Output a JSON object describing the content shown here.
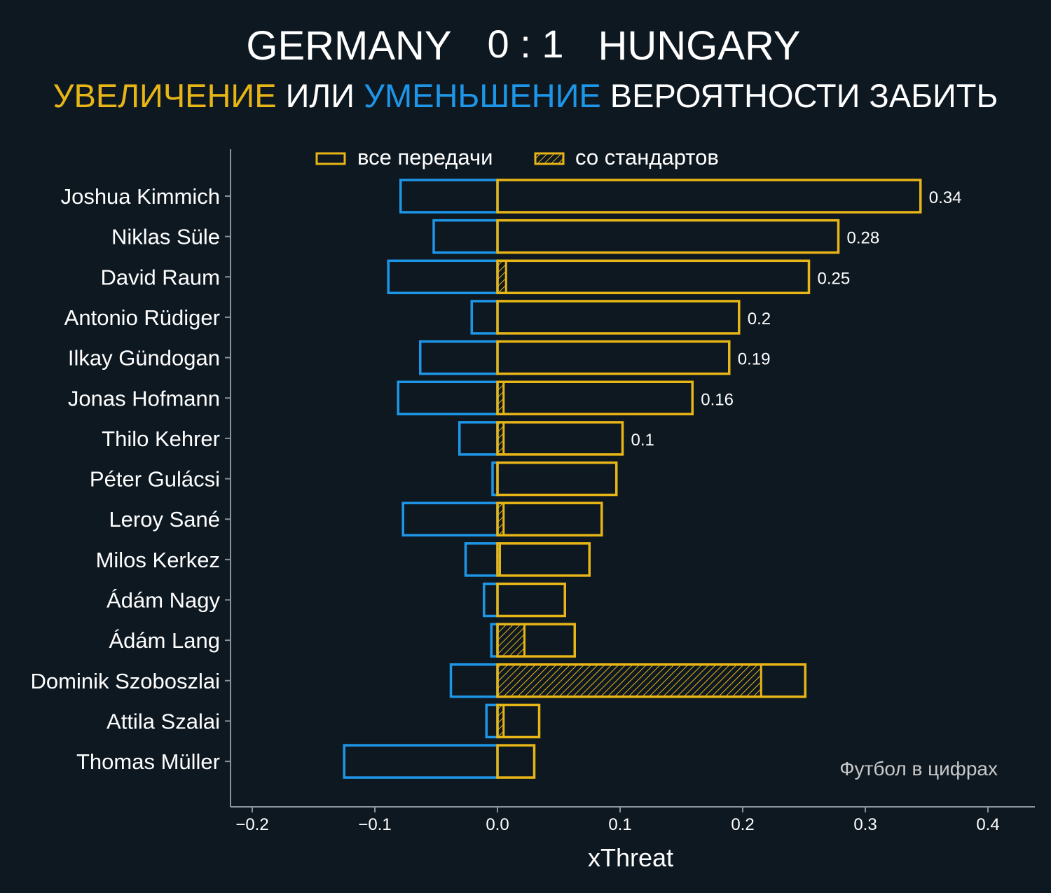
{
  "colors": {
    "background": "#0e1821",
    "increase": "#e8b517",
    "decrease": "#1e96e8",
    "text": "#ffffff",
    "axis": "#8a949c",
    "watermark": "#c8c8c8"
  },
  "header": {
    "home": "GERMANY",
    "score": "0 : 1",
    "away": "HUNGARY",
    "subtitle_increase": "УВЕЛИЧЕНИЕ",
    "subtitle_or": " ИЛИ ",
    "subtitle_decrease": "УМЕНЬШЕНИЕ",
    "subtitle_rest": " ВЕРОЯТНОСТИ ЗАБИТЬ"
  },
  "watermark": "Футбол в цифрах",
  "chart_data": {
    "type": "bar",
    "orientation": "horizontal",
    "xlabel": "xThreat",
    "xlim": [
      -0.22,
      0.44
    ],
    "xticks": [
      -0.2,
      -0.1,
      0.0,
      0.1,
      0.2,
      0.3,
      0.4
    ],
    "xtick_labels": [
      "−0.2",
      "−0.1",
      "0.0",
      "0.1",
      "0.2",
      "0.3",
      "0.4"
    ],
    "legend": {
      "placement": "top",
      "entries": [
        "все передачи",
        "со стандартов"
      ]
    },
    "categories": [
      "Joshua Kimmich",
      "Niklas Süle",
      "David Raum",
      "Antonio Rüdiger",
      "Ilkay Gündogan",
      "Jonas Hofmann",
      "Thilo Kehrer",
      "Péter Gulácsi",
      "Leroy Sané",
      "Milos Kerkez",
      "Ádám Nagy",
      "Ádám Lang",
      "Dominik Szoboszlai",
      "Attila Szalai",
      "Thomas Müller"
    ],
    "series": [
      {
        "name": "negative",
        "values": [
          -0.079,
          -0.052,
          -0.089,
          -0.021,
          -0.063,
          -0.081,
          -0.031,
          -0.004,
          -0.077,
          -0.026,
          -0.011,
          -0.005,
          -0.038,
          -0.009,
          -0.125
        ]
      },
      {
        "name": "все передачи",
        "values": [
          0.345,
          0.278,
          0.254,
          0.197,
          0.189,
          0.159,
          0.102,
          0.097,
          0.085,
          0.075,
          0.055,
          0.063,
          0.251,
          0.034,
          0.03
        ]
      },
      {
        "name": "со стандартов",
        "values": [
          0,
          0,
          0.007,
          0,
          0,
          0.005,
          0.005,
          0,
          0.005,
          0.002,
          0,
          0.022,
          0.215,
          0.005,
          0
        ]
      }
    ],
    "data_labels": [
      "0.34",
      "0.28",
      "0.25",
      "0.2",
      "0.19",
      "0.16",
      "0.1",
      "",
      "",
      "",
      "",
      "",
      "",
      "",
      ""
    ]
  }
}
